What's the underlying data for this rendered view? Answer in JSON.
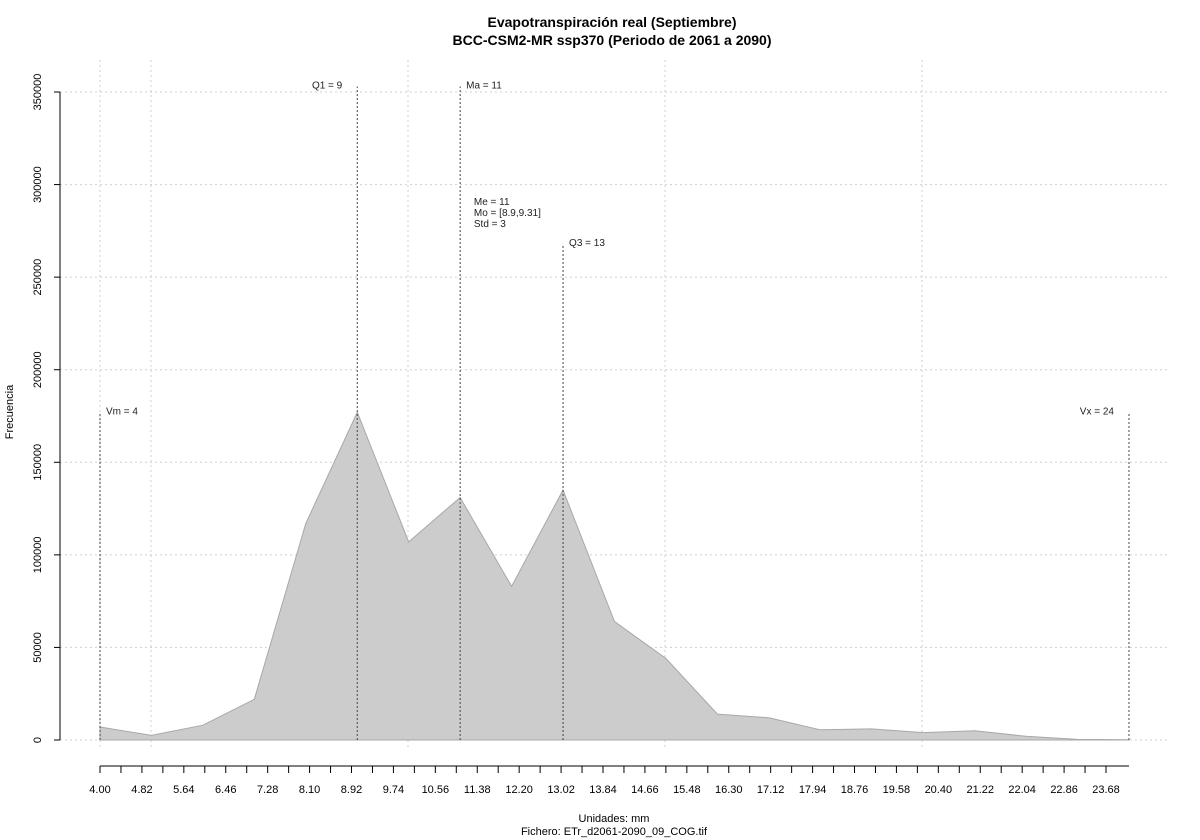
{
  "chart_data": {
    "type": "area",
    "title": "Evapotranspiración real (Septiembre)",
    "subtitle": "BCC-CSM2-MR ssp370 (Periodo de 2061 a 2090)",
    "xlabel": "Unidades: mm",
    "ylabel": "Frecuencia",
    "footer": "Fichero: ETr_d2061-2090_09_COG.tif",
    "xlim": [
      4.0,
      24.2
    ],
    "ylim": [
      0,
      350000
    ],
    "grid": true,
    "color": "#cccccc",
    "x_ticks": [
      "4.00",
      "4.82",
      "5.64",
      "6.46",
      "7.28",
      "8.10",
      "8.92",
      "9.74",
      "10.56",
      "11.38",
      "12.20",
      "13.02",
      "13.84",
      "14.66",
      "15.48",
      "16.30",
      "17.12",
      "17.94",
      "18.76",
      "19.58",
      "20.40",
      "21.22",
      "22.04",
      "22.86",
      "23.68"
    ],
    "y_ticks": [
      "0",
      "50000",
      "100000",
      "150000",
      "200000",
      "250000",
      "300000",
      "350000"
    ],
    "points": [
      {
        "x": 4.0,
        "y": 7000
      },
      {
        "x": 5.0,
        "y": 2500
      },
      {
        "x": 6.0,
        "y": 8000
      },
      {
        "x": 7.0,
        "y": 22000
      },
      {
        "x": 8.0,
        "y": 117000
      },
      {
        "x": 9.0,
        "y": 177000
      },
      {
        "x": 10.0,
        "y": 107000
      },
      {
        "x": 11.0,
        "y": 131000
      },
      {
        "x": 12.0,
        "y": 83000
      },
      {
        "x": 13.0,
        "y": 135000
      },
      {
        "x": 14.0,
        "y": 64000
      },
      {
        "x": 15.0,
        "y": 44000
      },
      {
        "x": 16.0,
        "y": 14000
      },
      {
        "x": 17.0,
        "y": 12000
      },
      {
        "x": 18.0,
        "y": 5500
      },
      {
        "x": 19.0,
        "y": 6000
      },
      {
        "x": 20.0,
        "y": 4000
      },
      {
        "x": 21.0,
        "y": 5000
      },
      {
        "x": 22.0,
        "y": 2000
      },
      {
        "x": 23.0,
        "y": 300
      },
      {
        "x": 24.0,
        "y": 100
      }
    ],
    "markers": [
      {
        "label": "Vm = 4",
        "x": 4.0,
        "y_top": 177000,
        "align": "left"
      },
      {
        "label": "Q1 = 9",
        "x": 9.0,
        "y_top": 353000,
        "align": "right"
      },
      {
        "label": "Ma = 11",
        "x": 11.0,
        "y_top": 353000,
        "align": "left"
      },
      {
        "label": "Q3 = 13",
        "x": 13.0,
        "y_top": 268000,
        "align": "left"
      },
      {
        "label": "Vx = 24",
        "x": 24.0,
        "y_top": 177000,
        "align": "right"
      }
    ],
    "stats": [
      {
        "label": "Me = 11"
      },
      {
        "label": "Mo = [8.9,9.31]"
      },
      {
        "label": "Std = 3"
      }
    ],
    "stats_anchor": {
      "x": 11.5,
      "y": 289000
    }
  }
}
